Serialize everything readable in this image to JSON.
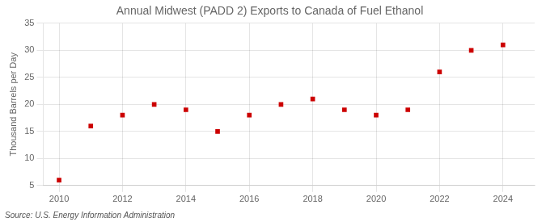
{
  "chart_data": {
    "type": "scatter",
    "title": "Annual Midwest (PADD 2) Exports to Canada of Fuel Ethanol",
    "ylabel": "Thousand Barrels per Day",
    "annotations": [
      "Source: U.S. Energy Information Administration"
    ],
    "x": [
      2010,
      2011,
      2012,
      2013,
      2014,
      2015,
      2016,
      2017,
      2018,
      2019,
      2020,
      2021,
      2022,
      2023,
      2024
    ],
    "values": [
      6,
      16,
      18,
      20,
      19,
      15,
      18,
      20,
      21,
      19,
      18,
      19,
      26,
      30,
      31
    ],
    "color": "#cc0000",
    "marker": "square",
    "xlim": [
      2009.5,
      2025.0
    ],
    "xticks": [
      2010,
      2012,
      2014,
      2016,
      2018,
      2020,
      2022,
      2024
    ],
    "ylim": [
      5,
      35
    ],
    "yticks": [
      5,
      10,
      15,
      20,
      25,
      30,
      35
    ],
    "grid": true
  }
}
